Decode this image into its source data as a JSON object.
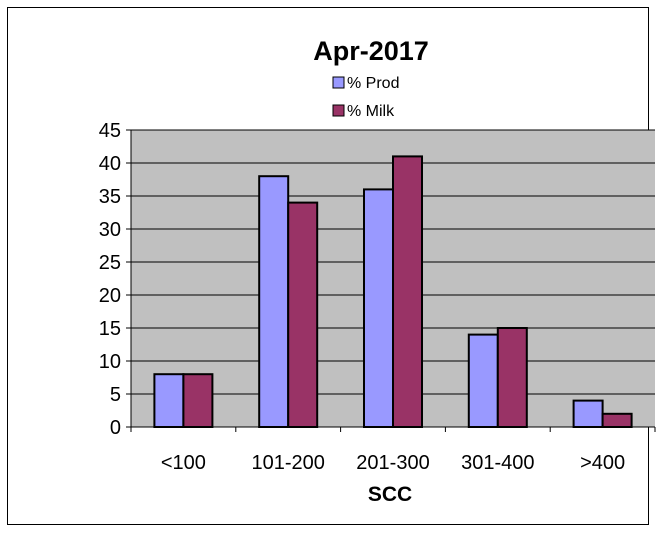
{
  "chart_data": {
    "type": "bar",
    "title": "Apr-2017",
    "xlabel": "SCC",
    "ylabel": "",
    "categories": [
      "<100",
      "101-200",
      "201-300",
      "301-400",
      ">400"
    ],
    "series": [
      {
        "name": "% Prod",
        "values": [
          8,
          38,
          36,
          14,
          4
        ]
      },
      {
        "name": "% Milk",
        "values": [
          8,
          34,
          41,
          15,
          2
        ]
      }
    ],
    "ylim": [
      0,
      45
    ],
    "yticks": [
      "0",
      "5",
      "10",
      "15",
      "20",
      "25",
      "30",
      "35",
      "40",
      "45"
    ],
    "grid": true,
    "legend_position": "top-center"
  },
  "colors": {
    "prod": "#9999ff",
    "milk": "#993366",
    "plot_background": "#c0c0c0",
    "gridline": "#000000"
  }
}
